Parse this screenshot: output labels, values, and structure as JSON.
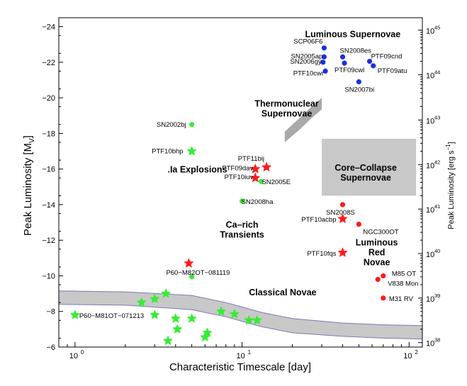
{
  "chart_data": {
    "type": "scatter",
    "xlabel": "Characteristic Timescale [day]",
    "ylabel": "Peak Luminosity [M_V]",
    "ylabel_right": "Peak Luminosity [erg s^-1]",
    "x_scale": "log",
    "xlim": [
      0.8,
      120
    ],
    "ylim": [
      -24.5,
      -6
    ],
    "y_inverted": true,
    "grid": false,
    "x_ticks": [
      {
        "value": 1,
        "label": "10",
        "exp": "0"
      },
      {
        "value": 10,
        "label": "10",
        "exp": "1"
      },
      {
        "value": 100,
        "label": "10",
        "exp": "2"
      }
    ],
    "y_ticks": [
      -24,
      -22,
      -20,
      -18,
      -16,
      -14,
      -12,
      -10,
      -8,
      -6
    ],
    "y_tick_labels": [
      "−24",
      "−22",
      "−20",
      "−18",
      "−16",
      "−14",
      "−12",
      "−10",
      "−8",
      "−6"
    ],
    "right_ticks": [
      {
        "mag": -23.8,
        "label": "10",
        "exp": "45"
      },
      {
        "mag": -21.3,
        "label": "10",
        "exp": "44"
      },
      {
        "mag": -18.75,
        "label": "10",
        "exp": "43"
      },
      {
        "mag": -16.25,
        "label": "10",
        "exp": "42"
      },
      {
        "mag": -13.75,
        "label": "10",
        "exp": "41"
      },
      {
        "mag": -11.25,
        "label": "10",
        "exp": "40"
      },
      {
        "mag": -8.75,
        "label": "10",
        "exp": "39"
      },
      {
        "mag": -6.25,
        "label": "10",
        "exp": "38"
      }
    ],
    "regions": [
      {
        "name": "Luminous Supernovae",
        "lines": [
          "Luminous Supernovae"
        ],
        "x": 46,
        "y": -23.4
      },
      {
        "name": "Thermonuclear Supernovae",
        "lines": [
          "Thermonuclear",
          "Supernovae"
        ],
        "x": 18.5,
        "y": -19.5
      },
      {
        "name": "Core-Collapse Supernovae",
        "lines": [
          "Core–Collapse",
          "Supernovae"
        ],
        "x": 55,
        "y": -15.9
      },
      {
        "name": ".Ia Explosions",
        "lines": [
          ".Ia Explosions"
        ],
        "x": 5.4,
        "y": -15.8
      },
      {
        "name": "Ca-rich Transients",
        "lines": [
          "Ca–rich",
          "Transients"
        ],
        "x": 10,
        "y": -12.7
      },
      {
        "name": "Luminous Red Novae",
        "lines": [
          "Luminous",
          "Red",
          "Novae"
        ],
        "x": 64,
        "y": -11.7
      },
      {
        "name": "Classical Novae",
        "lines": [
          "Classical Novae"
        ],
        "x": 17.5,
        "y": -8.9
      }
    ],
    "series": [
      {
        "color": "#1a2ee6",
        "marker": "circle",
        "points": [
          {
            "x": 31,
            "y": -22.8,
            "label": "SCP06F6"
          },
          {
            "x": 31,
            "y": -22.3,
            "label": "SN2005ap"
          },
          {
            "x": 30.5,
            "y": -22.0,
            "label": "SN2006gy"
          },
          {
            "x": 31.5,
            "y": -21.5,
            "label": "PTF10cwr"
          },
          {
            "x": 40,
            "y": -22.3,
            "label": "SN2008es"
          },
          {
            "x": 41,
            "y": -21.95,
            "label": "PTF09cwl"
          },
          {
            "x": 58,
            "y": -22.05,
            "label": "PTF09cnd"
          },
          {
            "x": 61,
            "y": -21.8,
            "label": "PTF09atu"
          },
          {
            "x": 50,
            "y": -20.9,
            "label": "SN2007bi"
          }
        ]
      },
      {
        "color": "#ff1a1a",
        "marker": "circle",
        "points": [
          {
            "x": 40,
            "y": -14.0,
            "label": "SN2008S"
          },
          {
            "x": 50,
            "y": -12.9,
            "label": "NGC300OT"
          },
          {
            "x": 70,
            "y": -10.0,
            "label": "M85 OT"
          },
          {
            "x": 65,
            "y": -9.8,
            "label": "V838 Mon"
          },
          {
            "x": 70,
            "y": -8.75,
            "label": "M31 RV"
          }
        ]
      },
      {
        "color": "#ff1a1a",
        "marker": "star",
        "points": [
          {
            "x": 14,
            "y": -16.1,
            "label": "PTF11bij"
          },
          {
            "x": 12,
            "y": -16.0,
            "label": "PTF09dav"
          },
          {
            "x": 12,
            "y": -15.5,
            "label": "PTF10iuv"
          },
          {
            "x": 40,
            "y": -13.2,
            "label": "PTF10acbp"
          },
          {
            "x": 40,
            "y": -11.3,
            "label": "PTF10fqs"
          },
          {
            "x": 4.8,
            "y": -10.7,
            "label": "P60−M82OT−081119"
          }
        ]
      },
      {
        "color": "#33ee33",
        "marker": "circle",
        "points": [
          {
            "x": 5,
            "y": -18.5,
            "label": "SN2002bj"
          },
          {
            "x": 13,
            "y": -15.3,
            "label": "SN2005E"
          },
          {
            "x": 10,
            "y": -14.2,
            "label": "SN2008ha"
          },
          {
            "x": 5,
            "y": -9.95,
            "label": ""
          }
        ]
      },
      {
        "color": "#33ee33",
        "marker": "star",
        "points": [
          {
            "x": 5,
            "y": -17.0,
            "label": "PTF10bhp"
          },
          {
            "x": 1,
            "y": -7.8,
            "label": "P60−M81OT−071213"
          },
          {
            "x": 3.5,
            "y": -9.0,
            "label": ""
          },
          {
            "x": 3,
            "y": -8.7,
            "label": ""
          },
          {
            "x": 2.5,
            "y": -8.5,
            "label": ""
          },
          {
            "x": 3,
            "y": -7.8,
            "label": ""
          },
          {
            "x": 4,
            "y": -7.6,
            "label": ""
          },
          {
            "x": 5,
            "y": -7.6,
            "label": ""
          },
          {
            "x": 4.1,
            "y": -7.0,
            "label": ""
          },
          {
            "x": 3.6,
            "y": -6.35,
            "label": ""
          },
          {
            "x": 6,
            "y": -6.55,
            "label": ""
          },
          {
            "x": 6.2,
            "y": -6.8,
            "label": ""
          },
          {
            "x": 7.5,
            "y": -8.0,
            "label": ""
          },
          {
            "x": 9,
            "y": -7.85,
            "label": ""
          },
          {
            "x": 11,
            "y": -7.5,
            "label": ""
          },
          {
            "x": 12.3,
            "y": -7.5,
            "label": ""
          }
        ]
      }
    ],
    "bands": {
      "core_collapse_box": {
        "x0": 30,
        "x1": 110,
        "y0": -17.7,
        "y1": -14.5,
        "color": "#c8c8c8"
      },
      "thermonuclear_band": {
        "upper": [
          [
            18,
            -18.1
          ],
          [
            22,
            -18.85
          ],
          [
            26,
            -19.5
          ],
          [
            30,
            -20.0
          ]
        ],
        "lower": [
          [
            18,
            -17.5
          ],
          [
            22,
            -18.2
          ],
          [
            26,
            -18.85
          ],
          [
            30,
            -19.35
          ]
        ],
        "color": "#a9a9a9"
      },
      "novae_band": {
        "upper": [
          [
            0.8,
            -9.15
          ],
          [
            2,
            -9.1
          ],
          [
            5,
            -8.9
          ],
          [
            8,
            -8.5
          ],
          [
            10,
            -8.25
          ],
          [
            13,
            -7.95
          ],
          [
            20,
            -7.6
          ],
          [
            40,
            -7.35
          ],
          [
            70,
            -7.25
          ],
          [
            120,
            -7.2
          ]
        ],
        "lower": [
          [
            0.8,
            -8.4
          ],
          [
            2,
            -8.35
          ],
          [
            5,
            -8.1
          ],
          [
            8,
            -7.7
          ],
          [
            10,
            -7.45
          ],
          [
            13,
            -7.15
          ],
          [
            20,
            -6.8
          ],
          [
            40,
            -6.6
          ],
          [
            70,
            -6.5
          ],
          [
            120,
            -6.45
          ]
        ],
        "fill": "#c8c8c8",
        "edge": "#7a7ab8"
      }
    }
  }
}
